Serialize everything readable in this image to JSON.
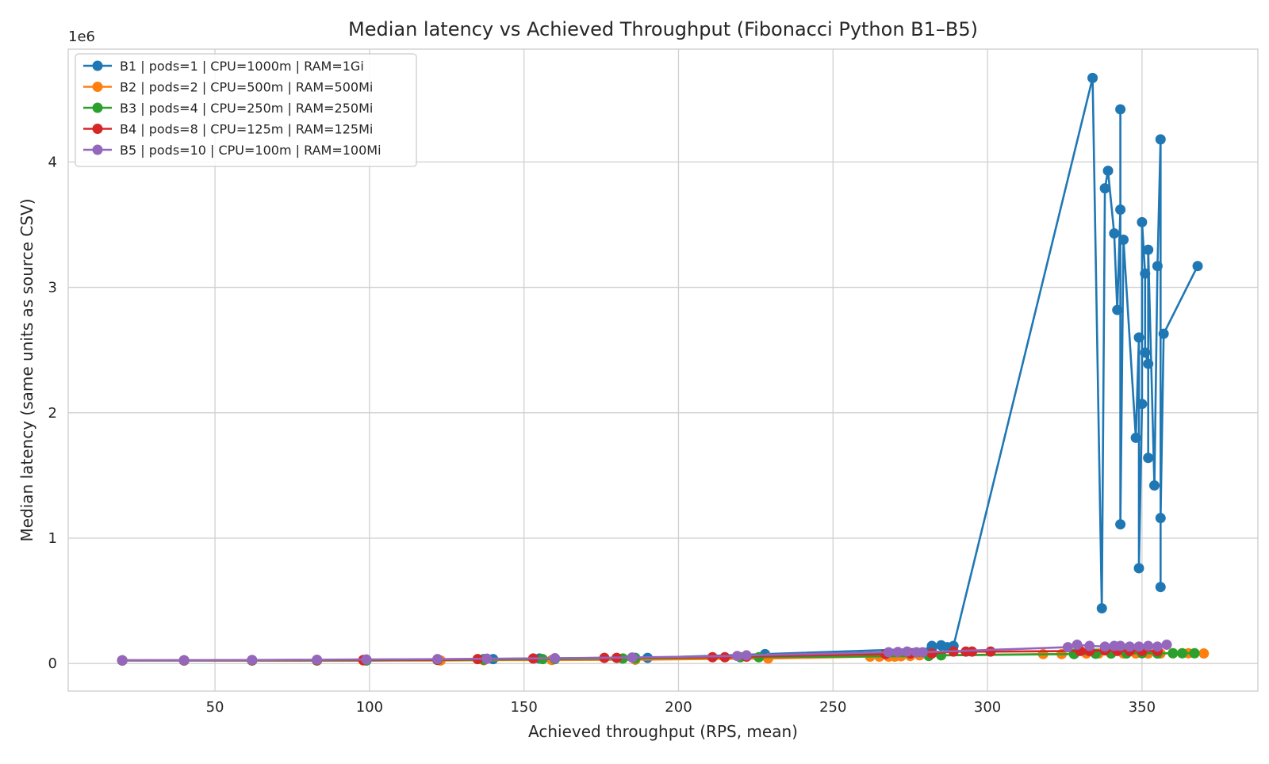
{
  "chart_data": {
    "type": "line",
    "title": "Median latency vs Achieved Throughput (Fibonacci Python B1–B5)",
    "xlabel": "Achieved throughput (RPS, mean)",
    "ylabel": "Median latency (same units as source CSV)",
    "y_offset_label": "1e6",
    "xlim": [
      2.5,
      387.5
    ],
    "ylim": [
      -220000,
      4900000
    ],
    "x_ticks": [
      50,
      100,
      150,
      200,
      250,
      300,
      350
    ],
    "y_ticks": [
      0,
      1000000,
      2000000,
      3000000,
      4000000
    ],
    "y_tick_labels": [
      "0",
      "1",
      "2",
      "3",
      "4"
    ],
    "grid": true,
    "legend_position": "upper-left",
    "series": [
      {
        "name": "B1 | pods=1 | CPU=1000m | RAM=1Gi",
        "color": "#1f77b4",
        "points": [
          [
            20,
            25000
          ],
          [
            40,
            25000
          ],
          [
            62,
            25000
          ],
          [
            83,
            25000
          ],
          [
            99,
            25000
          ],
          [
            122,
            30000
          ],
          [
            137,
            35000
          ],
          [
            140,
            35000
          ],
          [
            155,
            40000
          ],
          [
            160,
            40000
          ],
          [
            186,
            45000
          ],
          [
            190,
            45000
          ],
          [
            228,
            75000
          ],
          [
            282,
            120000
          ],
          [
            282,
            140000
          ],
          [
            285,
            145000
          ],
          [
            287,
            130000
          ],
          [
            289,
            140000
          ],
          [
            334,
            4670000
          ],
          [
            337,
            440000
          ],
          [
            338,
            3790000
          ],
          [
            339,
            3930000
          ],
          [
            341,
            3430000
          ],
          [
            342,
            2820000
          ],
          [
            343,
            3620000
          ],
          [
            343,
            4420000
          ],
          [
            343,
            1110000
          ],
          [
            344,
            3380000
          ],
          [
            348,
            1800000
          ],
          [
            349,
            2600000
          ],
          [
            349,
            760000
          ],
          [
            350,
            2070000
          ],
          [
            350,
            3520000
          ],
          [
            351,
            3110000
          ],
          [
            351,
            2480000
          ],
          [
            352,
            2390000
          ],
          [
            352,
            1640000
          ],
          [
            352,
            3300000
          ],
          [
            354,
            1420000
          ],
          [
            355,
            3170000
          ],
          [
            356,
            4180000
          ],
          [
            356,
            610000
          ],
          [
            356,
            1160000
          ],
          [
            357,
            2630000
          ],
          [
            368,
            3170000
          ]
        ]
      },
      {
        "name": "B2 | pods=2 | CPU=500m | RAM=500Mi",
        "color": "#ff7f0e",
        "points": [
          [
            20,
            24000
          ],
          [
            40,
            24000
          ],
          [
            62,
            24000
          ],
          [
            83,
            24000
          ],
          [
            98,
            24000
          ],
          [
            123,
            24000
          ],
          [
            137,
            26000
          ],
          [
            159,
            28000
          ],
          [
            186,
            30000
          ],
          [
            229,
            40000
          ],
          [
            262,
            55000
          ],
          [
            265,
            55000
          ],
          [
            268,
            55000
          ],
          [
            270,
            55000
          ],
          [
            272,
            58000
          ],
          [
            275,
            60000
          ],
          [
            278,
            65000
          ],
          [
            318,
            75000
          ],
          [
            324,
            75000
          ],
          [
            328,
            78000
          ],
          [
            332,
            80000
          ],
          [
            336,
            80000
          ],
          [
            340,
            80000
          ],
          [
            344,
            80000
          ],
          [
            348,
            80000
          ],
          [
            352,
            80000
          ],
          [
            356,
            80000
          ],
          [
            360,
            82000
          ],
          [
            365,
            82000
          ],
          [
            370,
            80000
          ]
        ]
      },
      {
        "name": "B3 | pods=4 | CPU=250m | RAM=250Mi",
        "color": "#2ca02c",
        "points": [
          [
            20,
            24000
          ],
          [
            40,
            24000
          ],
          [
            62,
            24000
          ],
          [
            83,
            24000
          ],
          [
            99,
            24000
          ],
          [
            122,
            28000
          ],
          [
            137,
            30000
          ],
          [
            156,
            35000
          ],
          [
            160,
            35000
          ],
          [
            182,
            40000
          ],
          [
            186,
            40000
          ],
          [
            220,
            50000
          ],
          [
            226,
            50000
          ],
          [
            281,
            60000
          ],
          [
            285,
            65000
          ],
          [
            328,
            75000
          ],
          [
            335,
            78000
          ],
          [
            340,
            80000
          ],
          [
            345,
            80000
          ],
          [
            350,
            82000
          ],
          [
            355,
            80000
          ],
          [
            360,
            82000
          ],
          [
            363,
            82000
          ],
          [
            367,
            82000
          ]
        ]
      },
      {
        "name": "B4 | pods=8 | CPU=125m | RAM=125Mi",
        "color": "#d62728",
        "points": [
          [
            20,
            25000
          ],
          [
            40,
            25000
          ],
          [
            62,
            26000
          ],
          [
            83,
            27000
          ],
          [
            98,
            28000
          ],
          [
            122,
            30000
          ],
          [
            135,
            35000
          ],
          [
            153,
            40000
          ],
          [
            176,
            45000
          ],
          [
            180,
            45000
          ],
          [
            211,
            50000
          ],
          [
            215,
            50000
          ],
          [
            222,
            55000
          ],
          [
            267,
            75000
          ],
          [
            275,
            80000
          ],
          [
            282,
            80000
          ],
          [
            289,
            95000
          ],
          [
            293,
            95000
          ],
          [
            295,
            95000
          ],
          [
            301,
            95000
          ],
          [
            330,
            100000
          ],
          [
            333,
            100000
          ],
          [
            338,
            105000
          ],
          [
            342,
            100000
          ],
          [
            346,
            100000
          ],
          [
            350,
            100000
          ],
          [
            355,
            100000
          ]
        ]
      },
      {
        "name": "B5 | pods=10 | CPU=100m | RAM=100Mi",
        "color": "#9467bd",
        "points": [
          [
            20,
            25000
          ],
          [
            40,
            26000
          ],
          [
            62,
            28000
          ],
          [
            83,
            30000
          ],
          [
            99,
            32000
          ],
          [
            122,
            35000
          ],
          [
            138,
            38000
          ],
          [
            160,
            42000
          ],
          [
            185,
            48000
          ],
          [
            219,
            60000
          ],
          [
            222,
            65000
          ],
          [
            268,
            90000
          ],
          [
            271,
            92000
          ],
          [
            274,
            95000
          ],
          [
            277,
            90000
          ],
          [
            279,
            90000
          ],
          [
            326,
            130000
          ],
          [
            329,
            150000
          ],
          [
            333,
            140000
          ],
          [
            338,
            135000
          ],
          [
            341,
            140000
          ],
          [
            343,
            140000
          ],
          [
            346,
            135000
          ],
          [
            349,
            135000
          ],
          [
            352,
            140000
          ],
          [
            355,
            135000
          ],
          [
            358,
            150000
          ]
        ]
      }
    ]
  }
}
